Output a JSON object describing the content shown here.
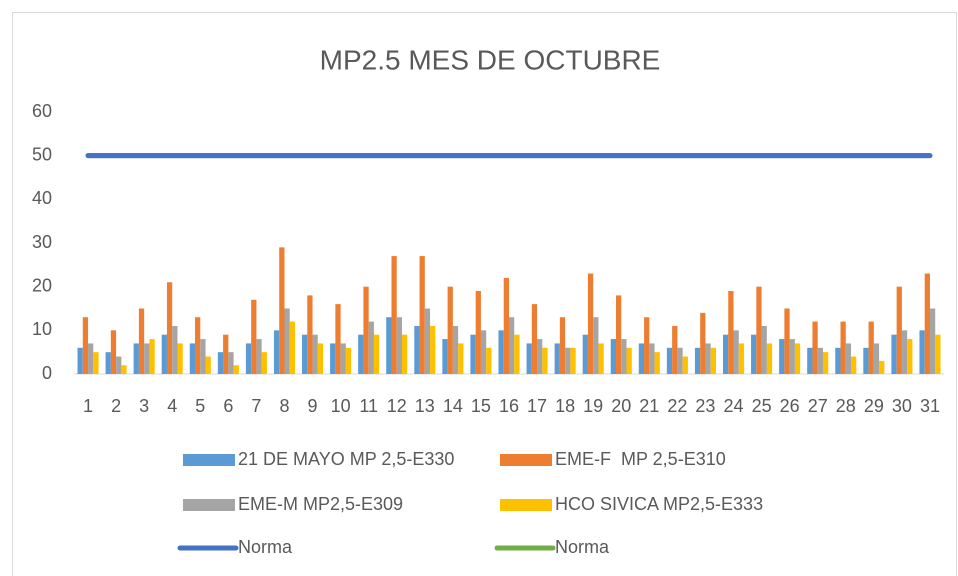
{
  "chart_data": {
    "type": "bar",
    "title": "MP2.5 MES DE OCTUBRE",
    "categories": [
      "1",
      "2",
      "3",
      "4",
      "5",
      "6",
      "7",
      "8",
      "9",
      "10",
      "11",
      "12",
      "13",
      "14",
      "15",
      "16",
      "17",
      "18",
      "19",
      "20",
      "21",
      "22",
      "23",
      "24",
      "25",
      "26",
      "27",
      "28",
      "29",
      "30",
      "31"
    ],
    "series": [
      {
        "name": "21 DE MAYO MP 2,5-E330",
        "color": "#5b9bd5",
        "type": "bar",
        "values": [
          6,
          5,
          7,
          9,
          7,
          5,
          7,
          10,
          9,
          7,
          9,
          13,
          11,
          8,
          9,
          10,
          7,
          7,
          9,
          8,
          7,
          6,
          6,
          9,
          9,
          8,
          6,
          6,
          6,
          9,
          10
        ]
      },
      {
        "name": "EME-F  MP 2,5-E310",
        "color": "#ed7d31",
        "type": "bar",
        "values": [
          13,
          10,
          15,
          21,
          13,
          9,
          17,
          29,
          18,
          16,
          20,
          27,
          27,
          20,
          19,
          22,
          16,
          13,
          23,
          18,
          13,
          11,
          14,
          19,
          20,
          15,
          12,
          12,
          12,
          20,
          23
        ]
      },
      {
        "name": "EME-M MP2,5-E309",
        "color": "#a5a5a5",
        "type": "bar",
        "values": [
          7,
          4,
          7,
          11,
          8,
          5,
          8,
          15,
          9,
          7,
          12,
          13,
          15,
          11,
          10,
          13,
          8,
          6,
          13,
          8,
          7,
          6,
          7,
          10,
          11,
          8,
          6,
          7,
          7,
          10,
          15
        ]
      },
      {
        "name": "HCO SIVICA MP2,5-E333",
        "color": "#ffc000",
        "type": "bar",
        "values": [
          5,
          2,
          8,
          7,
          4,
          2,
          5,
          12,
          7,
          6,
          9,
          9,
          11,
          7,
          6,
          9,
          6,
          6,
          7,
          6,
          5,
          4,
          6,
          7,
          7,
          7,
          5,
          4,
          3,
          8,
          9
        ]
      },
      {
        "name": "Norma",
        "color": "#70ad47",
        "type": "line",
        "values": [
          50,
          50,
          50,
          50,
          50,
          50,
          50,
          50,
          50,
          50,
          50,
          50,
          50,
          50,
          50,
          50,
          50,
          50,
          50,
          50,
          50,
          50,
          50,
          50,
          50,
          50,
          50,
          50,
          50,
          50,
          50
        ]
      },
      {
        "name": "Norma",
        "color": "#4472c4",
        "type": "line",
        "values": [
          50,
          50,
          50,
          50,
          50,
          50,
          50,
          50,
          50,
          50,
          50,
          50,
          50,
          50,
          50,
          50,
          50,
          50,
          50,
          50,
          50,
          50,
          50,
          50,
          50,
          50,
          50,
          50,
          50,
          50,
          50
        ]
      }
    ],
    "ylim": [
      0,
      60
    ],
    "yticks": [
      0,
      10,
      20,
      30,
      40,
      50,
      60
    ],
    "grid": false
  }
}
